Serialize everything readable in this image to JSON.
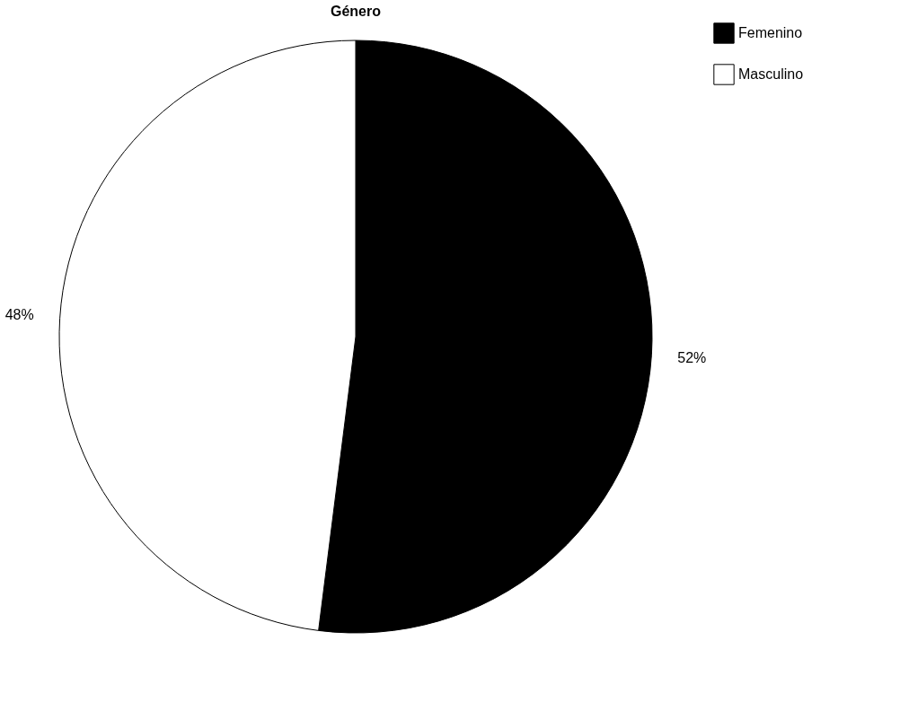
{
  "chart_data": {
    "type": "pie",
    "title": "Género",
    "categories": [
      "Femenino",
      "Masculino"
    ],
    "values": [
      52,
      48
    ],
    "colors": [
      "#000000",
      "#ffffff"
    ],
    "value_labels": [
      "52%",
      "48%"
    ],
    "legend": "top right"
  }
}
